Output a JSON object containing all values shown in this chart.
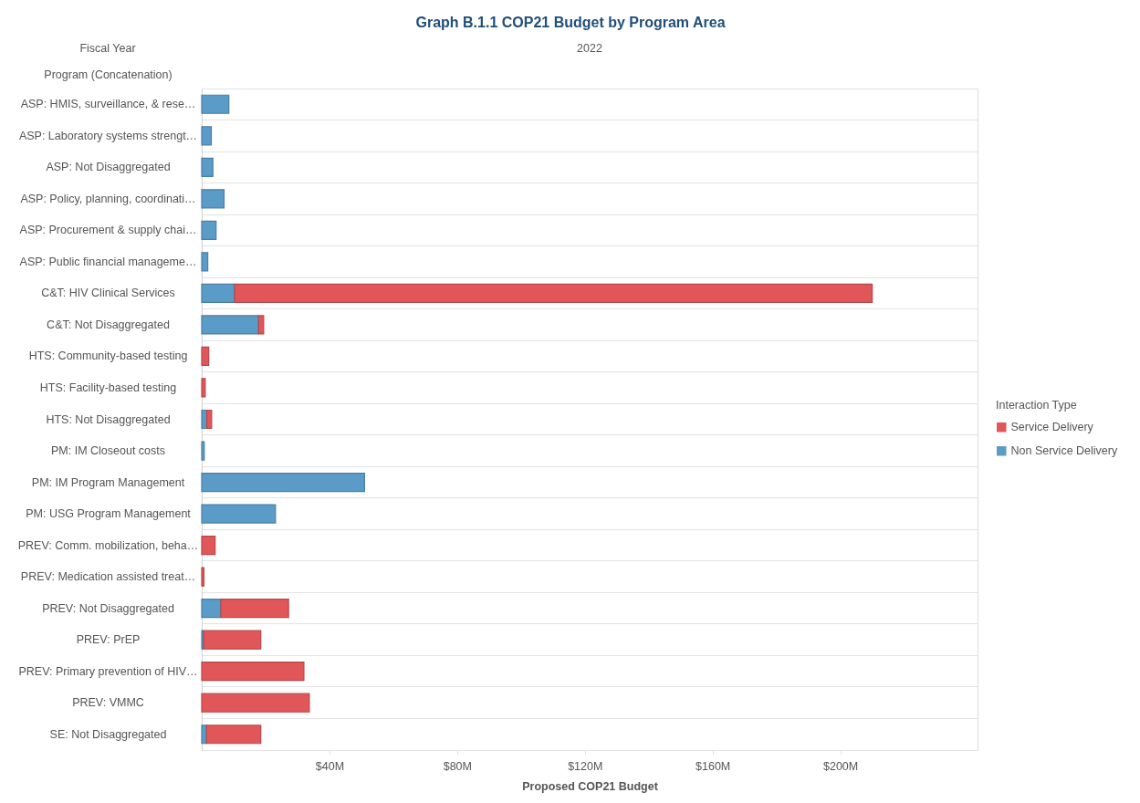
{
  "chart_data": {
    "type": "bar",
    "orientation": "horizontal",
    "stacked": true,
    "title": "Graph B.1.1 COP21 Budget by Program Area",
    "xlabel": "Proposed COP21 Budget",
    "ylabel": "Program (Concatenation)",
    "legend_title": "Interaction Type",
    "annotations": [
      "Fiscal Year",
      "2022"
    ],
    "categories": [
      "ASP: HMIS, surveillance, & rese…",
      "ASP: Laboratory systems strengt…",
      "ASP: Not Disaggregated",
      "ASP: Policy, planning, coordinati…",
      "ASP: Procurement & supply chai…",
      "ASP: Public financial manageme…",
      "C&T: HIV Clinical Services",
      "C&T: Not Disaggregated",
      "HTS: Community-based testing",
      "HTS: Facility-based testing",
      "HTS: Not Disaggregated",
      "PM: IM Closeout costs",
      "PM: IM Program Management",
      "PM: USG Program Management",
      "PREV: Comm. mobilization, beha…",
      "PREV: Medication assisted treat…",
      "PREV: Not Disaggregated",
      "PREV: PrEP",
      "PREV: Primary prevention of HIV…",
      "PREV: VMMC",
      "SE: Not Disaggregated"
    ],
    "series": [
      {
        "name": "Non Service Delivery",
        "color": "#5b9bc8",
        "values": [
          8.5,
          3,
          3.5,
          7,
          4.5,
          1.9,
          10.3,
          17.8,
          null,
          null,
          1.6,
          0.8,
          51,
          23.1,
          null,
          null,
          6,
          0.6,
          null,
          null,
          1.5
        ]
      },
      {
        "name": "Service Delivery",
        "color": "#e15759",
        "values": [
          null,
          null,
          null,
          null,
          null,
          null,
          199.7,
          1.6,
          2.2,
          1.1,
          1.5,
          null,
          null,
          null,
          4.2,
          0.7,
          21.2,
          17.9,
          32,
          33.7,
          17
        ]
      }
    ],
    "xlim": [
      0,
      243
    ],
    "xticks": [
      {
        "value": 40,
        "label": "$40M"
      },
      {
        "value": 80,
        "label": "$80M"
      },
      {
        "value": 120,
        "label": "$120M"
      },
      {
        "value": 160,
        "label": "$160M"
      },
      {
        "value": 200,
        "label": "$200M"
      }
    ],
    "grid": "y",
    "legend": "right"
  }
}
